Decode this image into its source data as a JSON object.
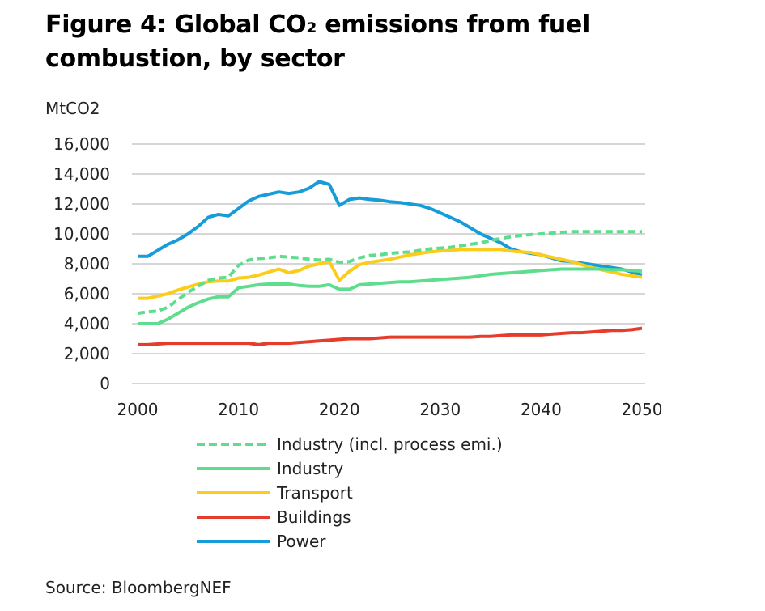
{
  "page": {
    "title": "Figure 4: Global CO₂ emissions from fuel combustion, by sector",
    "source": "Source: BloombergNEF"
  },
  "chart_data": {
    "type": "line",
    "ylabel": "MtCO2",
    "xlabel": "",
    "xlim": [
      2000,
      2050
    ],
    "ylim": [
      0,
      16000
    ],
    "x_ticks": [
      2000,
      2010,
      2020,
      2030,
      2040,
      2050
    ],
    "y_ticks": [
      0,
      2000,
      4000,
      6000,
      8000,
      10000,
      12000,
      14000,
      16000
    ],
    "y_tick_labels": [
      "0",
      "2,000",
      "4,000",
      "6,000",
      "8,000",
      "10,000",
      "12,000",
      "14,000",
      "16,000"
    ],
    "grid": "horizontal",
    "legend_position": "bottom",
    "x": [
      2000,
      2001,
      2002,
      2003,
      2004,
      2005,
      2006,
      2007,
      2008,
      2009,
      2010,
      2011,
      2012,
      2013,
      2014,
      2015,
      2016,
      2017,
      2018,
      2019,
      2020,
      2021,
      2022,
      2023,
      2024,
      2025,
      2026,
      2027,
      2028,
      2029,
      2030,
      2031,
      2032,
      2033,
      2034,
      2035,
      2036,
      2037,
      2038,
      2039,
      2040,
      2041,
      2042,
      2043,
      2044,
      2045,
      2046,
      2047,
      2048,
      2049,
      2050
    ],
    "series": [
      {
        "name": "Industry (incl. process emi.)",
        "color": "#5fdd8e",
        "dash": "dashed",
        "values": [
          4700,
          4800,
          4850,
          5100,
          5600,
          6100,
          6500,
          6900,
          7050,
          7100,
          7900,
          8250,
          8350,
          8400,
          8500,
          8450,
          8400,
          8300,
          8250,
          8300,
          8100,
          8150,
          8400,
          8550,
          8600,
          8700,
          8750,
          8800,
          8900,
          9000,
          9050,
          9100,
          9200,
          9300,
          9400,
          9550,
          9700,
          9800,
          9900,
          9950,
          10000,
          10050,
          10100,
          10150,
          10150,
          10150,
          10150,
          10150,
          10150,
          10150,
          10150
        ]
      },
      {
        "name": "Industry",
        "color": "#5fdd8e",
        "dash": "solid",
        "values": [
          4000,
          4000,
          4000,
          4300,
          4700,
          5100,
          5400,
          5650,
          5800,
          5800,
          6400,
          6500,
          6600,
          6650,
          6650,
          6650,
          6550,
          6500,
          6500,
          6600,
          6300,
          6300,
          6600,
          6650,
          6700,
          6750,
          6800,
          6800,
          6850,
          6900,
          6950,
          7000,
          7050,
          7100,
          7200,
          7300,
          7350,
          7400,
          7450,
          7500,
          7550,
          7600,
          7650,
          7650,
          7650,
          7650,
          7650,
          7600,
          7600,
          7550,
          7500
        ]
      },
      {
        "name": "Transport",
        "color": "#fccc1a",
        "dash": "solid",
        "values": [
          5700,
          5700,
          5850,
          6000,
          6250,
          6450,
          6650,
          6800,
          6850,
          6850,
          7050,
          7100,
          7250,
          7450,
          7650,
          7400,
          7550,
          7850,
          8000,
          8150,
          6900,
          7500,
          7950,
          8100,
          8200,
          8300,
          8450,
          8600,
          8700,
          8800,
          8850,
          8900,
          8950,
          8950,
          8950,
          8950,
          8950,
          8850,
          8800,
          8750,
          8600,
          8450,
          8300,
          8150,
          7950,
          7750,
          7600,
          7450,
          7300,
          7200,
          7100
        ]
      },
      {
        "name": "Buildings",
        "color": "#e63c2b",
        "dash": "solid",
        "values": [
          2600,
          2600,
          2650,
          2700,
          2700,
          2700,
          2700,
          2700,
          2700,
          2700,
          2700,
          2700,
          2600,
          2700,
          2700,
          2700,
          2750,
          2800,
          2850,
          2900,
          2950,
          3000,
          3000,
          3000,
          3050,
          3100,
          3100,
          3100,
          3100,
          3100,
          3100,
          3100,
          3100,
          3100,
          3150,
          3150,
          3200,
          3250,
          3250,
          3250,
          3250,
          3300,
          3350,
          3400,
          3400,
          3450,
          3500,
          3550,
          3550,
          3600,
          3700
        ]
      },
      {
        "name": "Power",
        "color": "#169cd8",
        "dash": "solid",
        "values": [
          8500,
          8500,
          8900,
          9300,
          9600,
          10000,
          10500,
          11100,
          11300,
          11200,
          11700,
          12200,
          12500,
          12650,
          12800,
          12700,
          12800,
          13050,
          13500,
          13300,
          11900,
          12300,
          12400,
          12300,
          12250,
          12150,
          12100,
          12000,
          11900,
          11700,
          11400,
          11100,
          10800,
          10400,
          10000,
          9700,
          9400,
          9000,
          8800,
          8700,
          8600,
          8400,
          8200,
          8150,
          8050,
          7950,
          7850,
          7750,
          7650,
          7450,
          7250
        ]
      }
    ]
  }
}
